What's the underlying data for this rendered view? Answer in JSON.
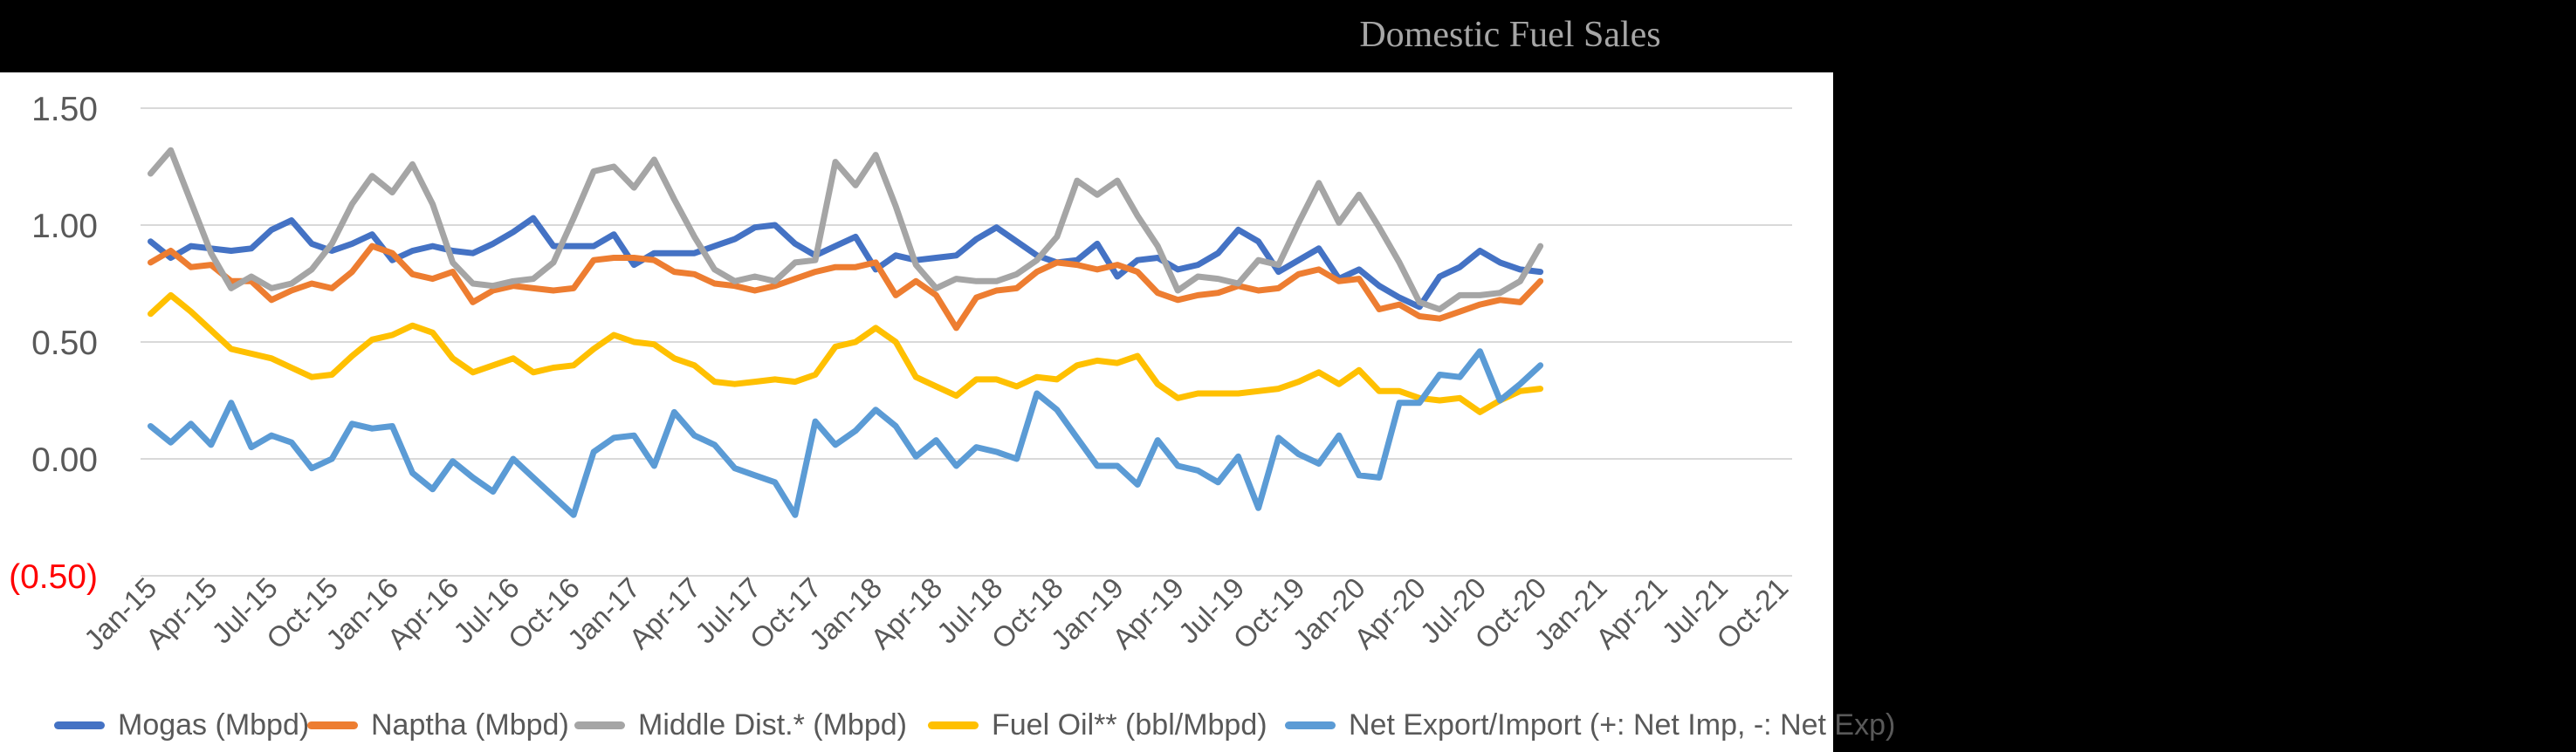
{
  "title": {
    "text": "Domestic Fuel Sales",
    "color": "#a6a6a6"
  },
  "colors": {
    "background": "#000000",
    "plot_background": "#ffffff",
    "gridline": "#d9d9d9",
    "axis_text": "#595959",
    "negative_tick": "#ff0000",
    "title_text": "#a6a6a6"
  },
  "chart_data": {
    "type": "line",
    "title": "Domestic Fuel Sales",
    "xlabel": "",
    "ylabel": "",
    "ylim": [
      -0.5,
      1.5
    ],
    "grid": "horizontal-only",
    "legend_position": "bottom",
    "ytick_values": [
      1.5,
      1.0,
      0.5,
      0.0,
      -0.5
    ],
    "ytick_labels": [
      "1.50",
      "1.00",
      "0.50",
      "0.00",
      "(0.50)"
    ],
    "xtick_labels": [
      "Jan-15",
      "Apr-15",
      "Jul-15",
      "Oct-15",
      "Jan-16",
      "Apr-16",
      "Jul-16",
      "Oct-16",
      "Jan-17",
      "Apr-17",
      "Jul-17",
      "Oct-17",
      "Jan-18",
      "Apr-18",
      "Jul-18",
      "Oct-18",
      "Jan-19",
      "Apr-19",
      "Jul-19",
      "Oct-19",
      "Jan-20",
      "Apr-20",
      "Jul-20",
      "Oct-20",
      "Jan-21",
      "Apr-21",
      "Jul-21",
      "Oct-21"
    ],
    "x_slot_count": 82,
    "x": [
      "Jan-15",
      "Feb-15",
      "Mar-15",
      "Apr-15",
      "May-15",
      "Jun-15",
      "Jul-15",
      "Aug-15",
      "Sep-15",
      "Oct-15",
      "Nov-15",
      "Dec-15",
      "Jan-16",
      "Feb-16",
      "Mar-16",
      "Apr-16",
      "May-16",
      "Jun-16",
      "Jul-16",
      "Aug-16",
      "Sep-16",
      "Oct-16",
      "Nov-16",
      "Dec-16",
      "Jan-17",
      "Feb-17",
      "Mar-17",
      "Apr-17",
      "May-17",
      "Jun-17",
      "Jul-17",
      "Aug-17",
      "Sep-17",
      "Oct-17",
      "Nov-17",
      "Dec-17",
      "Jan-18",
      "Feb-18",
      "Mar-18",
      "Apr-18",
      "May-18",
      "Jun-18",
      "Jul-18",
      "Aug-18",
      "Sep-18",
      "Oct-18",
      "Nov-18",
      "Dec-18",
      "Jan-19",
      "Feb-19",
      "Mar-19",
      "Apr-19",
      "May-19",
      "Jun-19",
      "Jul-19",
      "Aug-19",
      "Sep-19",
      "Oct-19",
      "Nov-19",
      "Dec-19",
      "Jan-20",
      "Feb-20",
      "Mar-20",
      "Apr-20",
      "May-20",
      "Jun-20",
      "Jul-20",
      "Aug-20",
      "Sep-20",
      "Oct-20"
    ],
    "series": [
      {
        "name": "Mogas (Mbpd)",
        "color": "#4472c4",
        "values": [
          0.93,
          0.86,
          0.91,
          0.9,
          0.89,
          0.9,
          0.98,
          1.02,
          0.92,
          0.89,
          0.92,
          0.96,
          0.85,
          0.89,
          0.91,
          0.89,
          0.88,
          0.92,
          0.97,
          1.03,
          0.91,
          0.91,
          0.91,
          0.96,
          0.83,
          0.88,
          0.88,
          0.88,
          0.91,
          0.94,
          0.99,
          1.0,
          0.92,
          0.87,
          0.91,
          0.95,
          0.81,
          0.87,
          0.85,
          0.86,
          0.87,
          0.94,
          0.99,
          0.93,
          0.87,
          0.84,
          0.85,
          0.92,
          0.78,
          0.85,
          0.86,
          0.81,
          0.83,
          0.88,
          0.98,
          0.93,
          0.8,
          0.85,
          0.9,
          0.77,
          0.81,
          0.74,
          0.69,
          0.65,
          0.78,
          0.82,
          0.89,
          0.84,
          0.81,
          0.8
        ]
      },
      {
        "name": "Naptha (Mbpd)",
        "color": "#ed7d31",
        "values": [
          0.84,
          0.89,
          0.82,
          0.83,
          0.76,
          0.76,
          0.68,
          0.72,
          0.75,
          0.73,
          0.8,
          0.91,
          0.88,
          0.79,
          0.77,
          0.8,
          0.67,
          0.72,
          0.74,
          0.73,
          0.72,
          0.73,
          0.85,
          0.86,
          0.86,
          0.85,
          0.8,
          0.79,
          0.75,
          0.74,
          0.72,
          0.74,
          0.77,
          0.8,
          0.82,
          0.82,
          0.84,
          0.7,
          0.76,
          0.7,
          0.56,
          0.69,
          0.72,
          0.73,
          0.8,
          0.84,
          0.83,
          0.81,
          0.83,
          0.8,
          0.71,
          0.68,
          0.7,
          0.71,
          0.74,
          0.72,
          0.73,
          0.79,
          0.81,
          0.76,
          0.77,
          0.64,
          0.66,
          0.61,
          0.6,
          0.63,
          0.66,
          0.68,
          0.67,
          0.76
        ]
      },
      {
        "name": "Middle Dist.* (Mbpd)",
        "color": "#a5a5a5",
        "values": [
          1.22,
          1.32,
          1.1,
          0.88,
          0.73,
          0.78,
          0.73,
          0.75,
          0.81,
          0.92,
          1.09,
          1.21,
          1.14,
          1.26,
          1.09,
          0.84,
          0.75,
          0.74,
          0.76,
          0.77,
          0.84,
          1.03,
          1.23,
          1.25,
          1.16,
          1.28,
          1.11,
          0.95,
          0.81,
          0.76,
          0.78,
          0.76,
          0.84,
          0.85,
          1.27,
          1.17,
          1.3,
          1.08,
          0.83,
          0.73,
          0.77,
          0.76,
          0.76,
          0.79,
          0.85,
          0.95,
          1.19,
          1.13,
          1.19,
          1.04,
          0.91,
          0.72,
          0.78,
          0.77,
          0.75,
          0.85,
          0.83,
          1.01,
          1.18,
          1.01,
          1.13,
          0.99,
          0.84,
          0.67,
          0.64,
          0.7,
          0.7,
          0.71,
          0.76,
          0.91
        ]
      },
      {
        "name": "Fuel Oil** (bbl/Mbpd)",
        "color": "#ffc000",
        "values": [
          0.62,
          0.7,
          0.63,
          0.55,
          0.47,
          0.45,
          0.43,
          0.39,
          0.35,
          0.36,
          0.44,
          0.51,
          0.53,
          0.57,
          0.54,
          0.43,
          0.37,
          0.4,
          0.43,
          0.37,
          0.39,
          0.4,
          0.47,
          0.53,
          0.5,
          0.49,
          0.43,
          0.4,
          0.33,
          0.32,
          0.33,
          0.34,
          0.33,
          0.36,
          0.48,
          0.5,
          0.56,
          0.5,
          0.35,
          0.31,
          0.27,
          0.34,
          0.34,
          0.31,
          0.35,
          0.34,
          0.4,
          0.42,
          0.41,
          0.44,
          0.32,
          0.26,
          0.28,
          0.28,
          0.28,
          0.29,
          0.3,
          0.33,
          0.37,
          0.32,
          0.38,
          0.29,
          0.29,
          0.26,
          0.25,
          0.26,
          0.2,
          0.25,
          0.29,
          0.3
        ]
      },
      {
        "name": "Net Export/Import (+: Net Imp, -: Net Exp)",
        "color": "#5b9bd5",
        "values": [
          0.14,
          0.07,
          0.15,
          0.06,
          0.24,
          0.05,
          0.1,
          0.07,
          -0.04,
          0.0,
          0.15,
          0.13,
          0.14,
          -0.06,
          -0.13,
          -0.01,
          -0.08,
          -0.14,
          0.0,
          -0.08,
          -0.16,
          -0.24,
          0.03,
          0.09,
          0.1,
          -0.03,
          0.2,
          0.1,
          0.06,
          -0.04,
          -0.07,
          -0.1,
          -0.24,
          0.16,
          0.06,
          0.12,
          0.21,
          0.14,
          0.01,
          0.08,
          -0.03,
          0.05,
          0.03,
          0.0,
          0.28,
          0.21,
          0.09,
          -0.03,
          -0.03,
          -0.11,
          0.08,
          -0.03,
          -0.05,
          -0.1,
          0.01,
          -0.21,
          0.09,
          0.02,
          -0.02,
          0.1,
          -0.07,
          -0.08,
          0.24,
          0.24,
          0.36,
          0.35,
          0.46,
          0.25,
          0.32,
          0.4
        ]
      }
    ]
  },
  "legend": {
    "items": [
      {
        "label": "Mogas (Mbpd)",
        "color": "#4472c4"
      },
      {
        "label": "Naptha (Mbpd)",
        "color": "#ed7d31"
      },
      {
        "label": "Middle Dist.* (Mbpd)",
        "color": "#a5a5a5"
      },
      {
        "label": "Fuel Oil** (bbl/Mbpd)",
        "color": "#ffc000"
      },
      {
        "label": "Net Export/Import (+: Net Imp, -: Net Exp)",
        "color": "#5b9bd5"
      }
    ]
  }
}
